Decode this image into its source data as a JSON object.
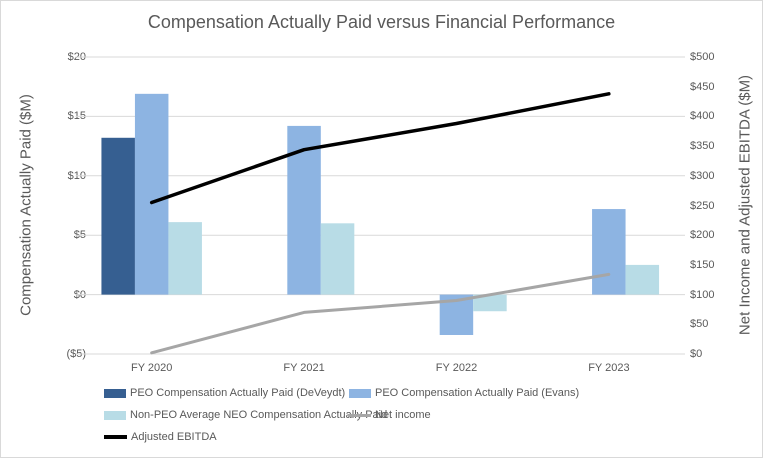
{
  "title": "Compensation Actually Paid versus Financial Performance",
  "chart_data": {
    "type": "combo-bar-line",
    "categories": [
      "FY 2020",
      "FY 2021",
      "FY 2022",
      "FY 2023"
    ],
    "series": [
      {
        "name": "PEO Compensation Actually Paid (DeVeydt)",
        "type": "bar",
        "axis": "left",
        "color": "#365f91",
        "values": [
          13.2,
          null,
          null,
          null
        ]
      },
      {
        "name": "PEO Compensation Actually Paid (Evans)",
        "type": "bar",
        "axis": "left",
        "color": "#8db4e2",
        "values": [
          16.9,
          14.2,
          -3.4,
          7.2
        ]
      },
      {
        "name": "Non-PEO Average NEO Compensation Actually Paid",
        "type": "bar",
        "axis": "left",
        "color": "#b8dce6",
        "values": [
          6.1,
          6.0,
          -1.4,
          2.5
        ]
      },
      {
        "name": "Net income",
        "type": "line",
        "axis": "right",
        "color": "#a6a6a6",
        "values": [
          2,
          70,
          90,
          134
        ]
      },
      {
        "name": "Adjusted EBITDA",
        "type": "line",
        "axis": "right",
        "color": "#000000",
        "values": [
          255,
          344,
          388,
          438
        ]
      }
    ],
    "left_axis": {
      "label": "Compensation Actually Paid ($M)",
      "min": -5,
      "max": 20,
      "ticks": [
        "$20",
        "$15",
        "$10",
        "$5",
        "$0",
        "($5)"
      ]
    },
    "right_axis": {
      "label": "Net Income and Adjusted EBITDA ($M)",
      "min": 0,
      "max": 500,
      "ticks": [
        "$500",
        "$450",
        "$400",
        "$350",
        "$300",
        "$250",
        "$200",
        "$150",
        "$100",
        "$50",
        "$0"
      ]
    },
    "grid": true,
    "gridline_color": "#d9d9d9",
    "legend_position": "bottom-left"
  }
}
